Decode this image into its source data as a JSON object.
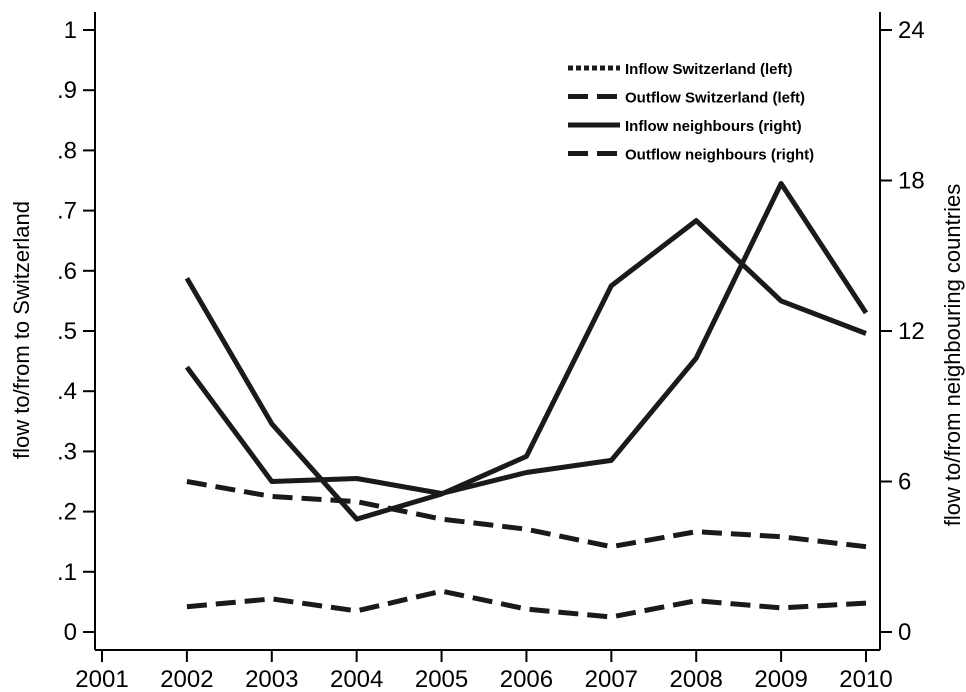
{
  "chart_data": {
    "type": "line",
    "title": "",
    "ylabel_left": "flow to/from to Switzerland",
    "ylabel_right": "flow to/from neighbouring countries",
    "xlim": [
      2001,
      2010
    ],
    "ylim_left": [
      0,
      1
    ],
    "ylim_right": [
      0,
      24
    ],
    "x_ticks": [
      "2001",
      "2002",
      "2003",
      "2004",
      "2005",
      "2006",
      "2007",
      "2008",
      "2009",
      "2010"
    ],
    "y_left_ticks": [
      {
        "value": 0,
        "label": "0"
      },
      {
        "value": 0.1,
        "label": ".1"
      },
      {
        "value": 0.2,
        "label": ".2"
      },
      {
        "value": 0.3,
        "label": ".3"
      },
      {
        "value": 0.4,
        "label": ".4"
      },
      {
        "value": 0.5,
        "label": ".5"
      },
      {
        "value": 0.6,
        "label": ".6"
      },
      {
        "value": 0.7,
        "label": ".7"
      },
      {
        "value": 0.8,
        "label": ".8"
      },
      {
        "value": 0.9,
        "label": ".9"
      },
      {
        "value": 1,
        "label": "1"
      }
    ],
    "y_right_ticks": [
      {
        "value": 0,
        "label": "0"
      },
      {
        "value": 6,
        "label": "6"
      },
      {
        "value": 12,
        "label": "12"
      },
      {
        "value": 18,
        "label": "18"
      },
      {
        "value": 24,
        "label": "24"
      }
    ],
    "grid": false,
    "legend_position": "top-right",
    "x": [
      2002,
      2003,
      2004,
      2005,
      2006,
      2007,
      2008,
      2009,
      2010
    ],
    "series": [
      {
        "name": "Inflow Switzerland (left)",
        "axis": "left",
        "style": "solid",
        "color": "#1a1a1a",
        "values": [
          0.44,
          0.25,
          0.255,
          0.23,
          0.265,
          0.285,
          0.455,
          0.745,
          0.53
        ]
      },
      {
        "name": "Outflow Switzerland (left)",
        "axis": "left",
        "style": "dash",
        "color": "#1a1a1a",
        "values": [
          0.042,
          0.055,
          0.035,
          0.068,
          0.038,
          0.025,
          0.052,
          0.04,
          0.048
        ]
      },
      {
        "name": "Inflow neighbours (right)",
        "axis": "right",
        "style": "solid",
        "color": "#1a1a1a",
        "values": [
          14.1,
          8.3,
          4.5,
          5.5,
          7.0,
          13.8,
          16.4,
          13.2,
          11.9
        ]
      },
      {
        "name": "Outflow neighbours (right)",
        "axis": "right",
        "style": "dash",
        "color": "#1a1a1a",
        "values": [
          6.0,
          5.4,
          5.2,
          4.5,
          4.1,
          3.4,
          4.0,
          3.8,
          3.4
        ]
      }
    ]
  }
}
